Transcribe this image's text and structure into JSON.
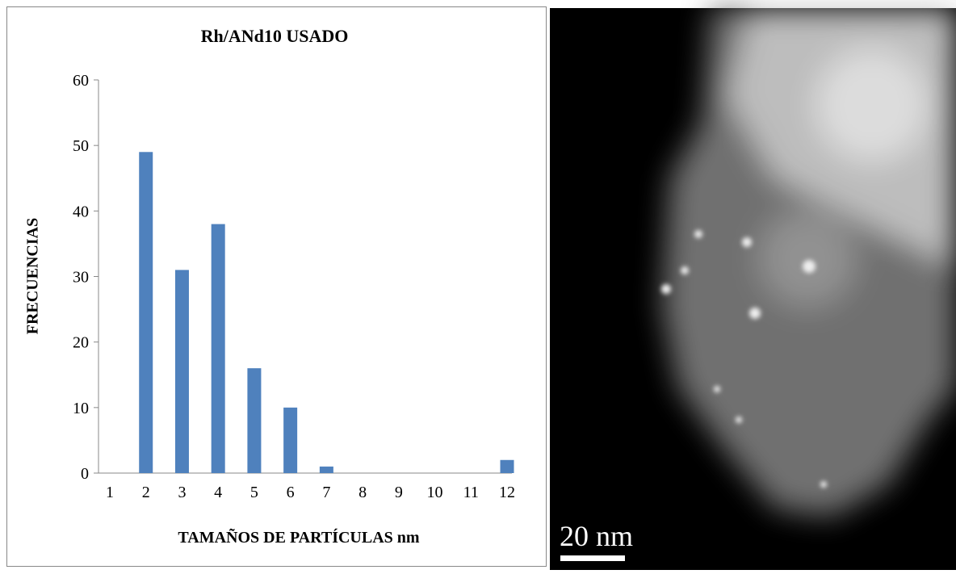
{
  "chart_data": {
    "type": "bar",
    "title": "Rh/ANd10 USADO",
    "x_label": "TAMAÑOS DE PARTÍCULAS nm",
    "y_label": "FRECUENCIAS",
    "categories": [
      "1",
      "2",
      "3",
      "4",
      "5",
      "6",
      "7",
      "8",
      "9",
      "10",
      "11",
      "12"
    ],
    "values": [
      0,
      49,
      31,
      38,
      16,
      10,
      1,
      0,
      0,
      0,
      0,
      2
    ],
    "color": "#4f81bd",
    "ylim": [
      0,
      60
    ],
    "yticks": [
      0,
      10,
      20,
      30,
      40,
      50,
      60
    ],
    "grid": false
  },
  "image": {
    "scale_label": "20 nm"
  }
}
